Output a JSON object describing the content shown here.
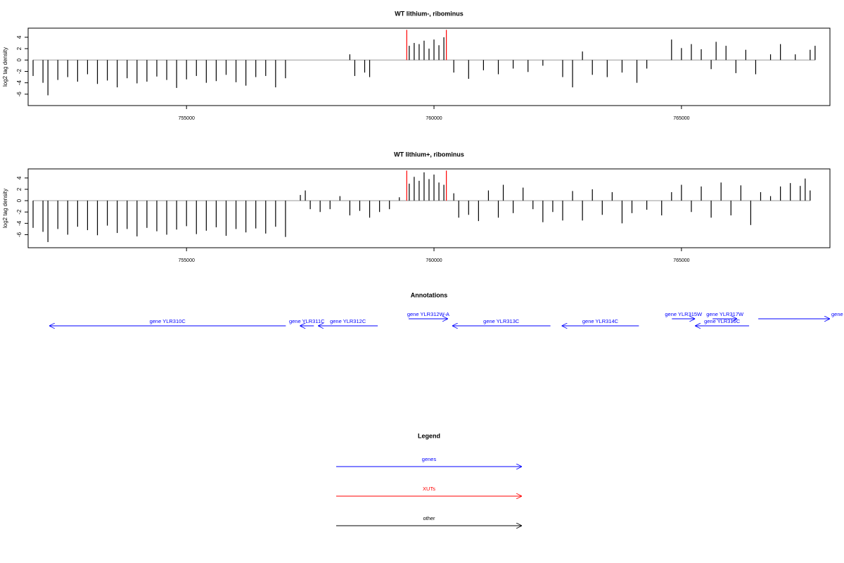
{
  "chart_data": [
    {
      "type": "bar",
      "title": "WT lithium-, ribominus",
      "ylabel": "log2 tag density",
      "xlim": [
        751800,
        768000
      ],
      "ylim": [
        -8,
        5.6
      ],
      "xticks": [
        755000,
        760000,
        765000
      ],
      "yticks": [
        -6,
        -4,
        -2,
        0,
        2,
        4
      ],
      "series": [
        {
          "color": "#000000",
          "x": [
            751900,
            752100,
            752200,
            752400,
            752600,
            752800,
            753000,
            753200,
            753400,
            753600,
            753800,
            754000,
            754200,
            754400,
            754600,
            754800,
            755000,
            755200,
            755400,
            755600,
            755800,
            756000,
            756200,
            756400,
            756600,
            756800,
            757000,
            758300,
            758400,
            758600,
            758700,
            759500,
            759600,
            759700,
            759800,
            759900,
            760000,
            760100,
            760200,
            760400,
            760700,
            761000,
            761300,
            761600,
            761900,
            762200,
            762600,
            762800,
            763000,
            763200,
            763500,
            763800,
            764100,
            764300,
            764800,
            765000,
            765200,
            765400,
            765600,
            765700,
            765900,
            766100,
            766300,
            766500,
            766800,
            767000,
            767300,
            767600,
            767700
          ],
          "values": [
            -2.8,
            -4,
            -6.2,
            -3.5,
            -3,
            -3.8,
            -2.5,
            -4.2,
            -3.6,
            -4.8,
            -3.2,
            -4.1,
            -3.8,
            -2.9,
            -3.5,
            -4.9,
            -3.4,
            -2.8,
            -4,
            -3.7,
            -2.6,
            -3.9,
            -4.5,
            -3,
            -2.8,
            -4.8,
            -3.2,
            1,
            -2.8,
            -2.2,
            -3,
            2.5,
            3,
            2.8,
            3.4,
            2,
            3.6,
            2.6,
            4,
            -2.2,
            -3.3,
            -1.8,
            -2.5,
            -1.5,
            -2.1,
            -1,
            -3,
            -4.8,
            1.5,
            -2.6,
            -3,
            -2.2,
            -4,
            -1.5,
            3.6,
            2.1,
            2.8,
            1.9,
            -1.6,
            3.2,
            2.5,
            -2.3,
            1.8,
            -2.5,
            1,
            2.8,
            1,
            1.8,
            2.5
          ]
        },
        {
          "color": "#ff0000",
          "x": [
            759450,
            760250
          ],
          "values": [
            5.3,
            5.3
          ]
        }
      ]
    },
    {
      "type": "bar",
      "title": "WT lithium+, ribominus",
      "ylabel": "log2 tag density",
      "xlim": [
        751800,
        768000
      ],
      "ylim": [
        -8.3,
        5.6
      ],
      "xticks": [
        755000,
        760000,
        765000
      ],
      "yticks": [
        -6,
        -4,
        -2,
        0,
        2,
        4
      ],
      "series": [
        {
          "color": "#000000",
          "x": [
            751900,
            752100,
            752200,
            752400,
            752600,
            752800,
            753000,
            753200,
            753400,
            753600,
            753800,
            754000,
            754200,
            754400,
            754600,
            754800,
            755000,
            755200,
            755400,
            755600,
            755800,
            756000,
            756200,
            756400,
            756600,
            756800,
            757000,
            757300,
            757400,
            757500,
            757700,
            757900,
            758100,
            758300,
            758500,
            758700,
            758900,
            759100,
            759300,
            759500,
            759600,
            759700,
            759800,
            759900,
            760000,
            760100,
            760200,
            760400,
            760500,
            760700,
            760900,
            761100,
            761300,
            761400,
            761600,
            761800,
            762000,
            762200,
            762400,
            762600,
            762800,
            763000,
            763200,
            763400,
            763600,
            763800,
            764000,
            764300,
            764600,
            764800,
            765000,
            765200,
            765400,
            765600,
            765800,
            766000,
            766200,
            766400,
            766600,
            766800,
            767000,
            767200,
            767400,
            767500,
            767600
          ],
          "values": [
            -4.8,
            -5.5,
            -7.3,
            -5,
            -6,
            -4.6,
            -5.2,
            -6.1,
            -4.4,
            -5.7,
            -5,
            -6.3,
            -4.8,
            -5.4,
            -6,
            -5.1,
            -4.5,
            -5.9,
            -5.3,
            -4.7,
            -6.2,
            -5,
            -5.6,
            -4.9,
            -5.8,
            -4.6,
            -6.4,
            1,
            1.8,
            -1.5,
            -2,
            -1.5,
            0.8,
            -2.6,
            -1.8,
            -3,
            -2,
            -1.5,
            0.6,
            3,
            4.2,
            3.5,
            5,
            3.8,
            4.6,
            3.2,
            2.8,
            1.3,
            -3,
            -2.5,
            -3.6,
            1.8,
            -3,
            2.8,
            -2.2,
            2.3,
            -1.5,
            -3.8,
            -2,
            -3.5,
            1.7,
            -3.5,
            2,
            -2.5,
            1.5,
            -4,
            -2.2,
            -1.6,
            -2.6,
            1.5,
            2.8,
            -2,
            2.5,
            -3,
            3.2,
            -2.6,
            2.7,
            -4.3,
            1.5,
            0.8,
            2.5,
            3.1,
            2.6,
            3.9,
            1.8
          ]
        },
        {
          "color": "#ff0000",
          "x": [
            759450,
            760250
          ],
          "values": [
            5.3,
            5.3
          ]
        }
      ]
    }
  ],
  "annotations": {
    "title": "Annotations",
    "color": "#0000ff",
    "genes": [
      {
        "label": "gene YLR310C",
        "start": 752226,
        "end": 757006,
        "strand": "-"
      },
      {
        "label": "gene YLR311C",
        "start": 757289,
        "end": 757573,
        "strand": "-"
      },
      {
        "label": "gene YLR312C",
        "start": 757658,
        "end": 758864,
        "strand": "-"
      },
      {
        "label": "gene YLR312W-A",
        "start": 759488,
        "end": 760282,
        "strand": "+"
      },
      {
        "label": "gene YLR313C",
        "start": 760367,
        "end": 762353,
        "strand": "-"
      },
      {
        "label": "gene YLR314C",
        "start": 762580,
        "end": 764140,
        "strand": "-"
      },
      {
        "label": "gene YLR315W",
        "start": 764807,
        "end": 765275,
        "strand": "+"
      },
      {
        "label": "gene YLR317W",
        "start": 765630,
        "end": 766126,
        "strand": "+"
      },
      {
        "label": "gene YLR316C",
        "start": 765275,
        "end": 766367,
        "strand": "-"
      },
      {
        "label": "gene YLR",
        "start": 766552,
        "end": 768000,
        "strand": "+"
      }
    ]
  },
  "legend": {
    "title": "Legend",
    "items": [
      {
        "label": "genes",
        "color": "#0000ff"
      },
      {
        "label": "XUTs",
        "color": "#ff0000"
      },
      {
        "label": "other",
        "color": "#000000"
      }
    ]
  }
}
